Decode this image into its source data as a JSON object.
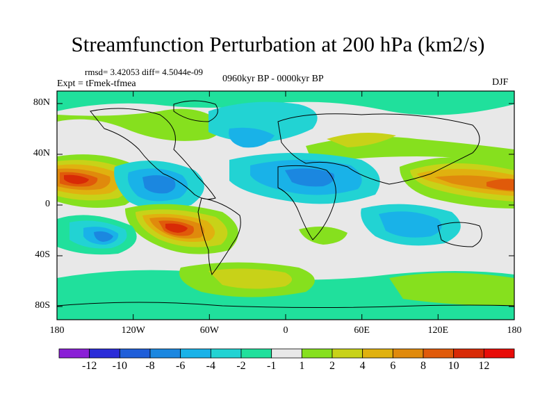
{
  "title": "Streamfunction Perturbation at 200 hPa (km2/s)",
  "stats": "rmsd= 3.42053 diff= 4.5044e-09",
  "experiment": "Expt = tFmek-tfmea",
  "period": "0960kyr BP - 0000kyr BP",
  "season": "DJF",
  "lat_ticks": [
    "80N",
    "40N",
    "0",
    "40S",
    "80S"
  ],
  "lon_ticks": [
    "180",
    "120W",
    "60W",
    "0",
    "60E",
    "120E",
    "180"
  ],
  "colorbar": {
    "labels": [
      "-12",
      "-10",
      "-8",
      "-6",
      "-4",
      "-2",
      "-1",
      "1",
      "2",
      "4",
      "6",
      "8",
      "10",
      "12"
    ],
    "colors": [
      "#8a1fd6",
      "#2a2bd8",
      "#1f5ed9",
      "#1b87e0",
      "#19b2e8",
      "#22d3d3",
      "#20e09c",
      "#e8e8e8",
      "#86e01e",
      "#c8d218",
      "#e0b10f",
      "#e08a0c",
      "#e05a0a",
      "#d82a06",
      "#e80c08"
    ]
  }
}
